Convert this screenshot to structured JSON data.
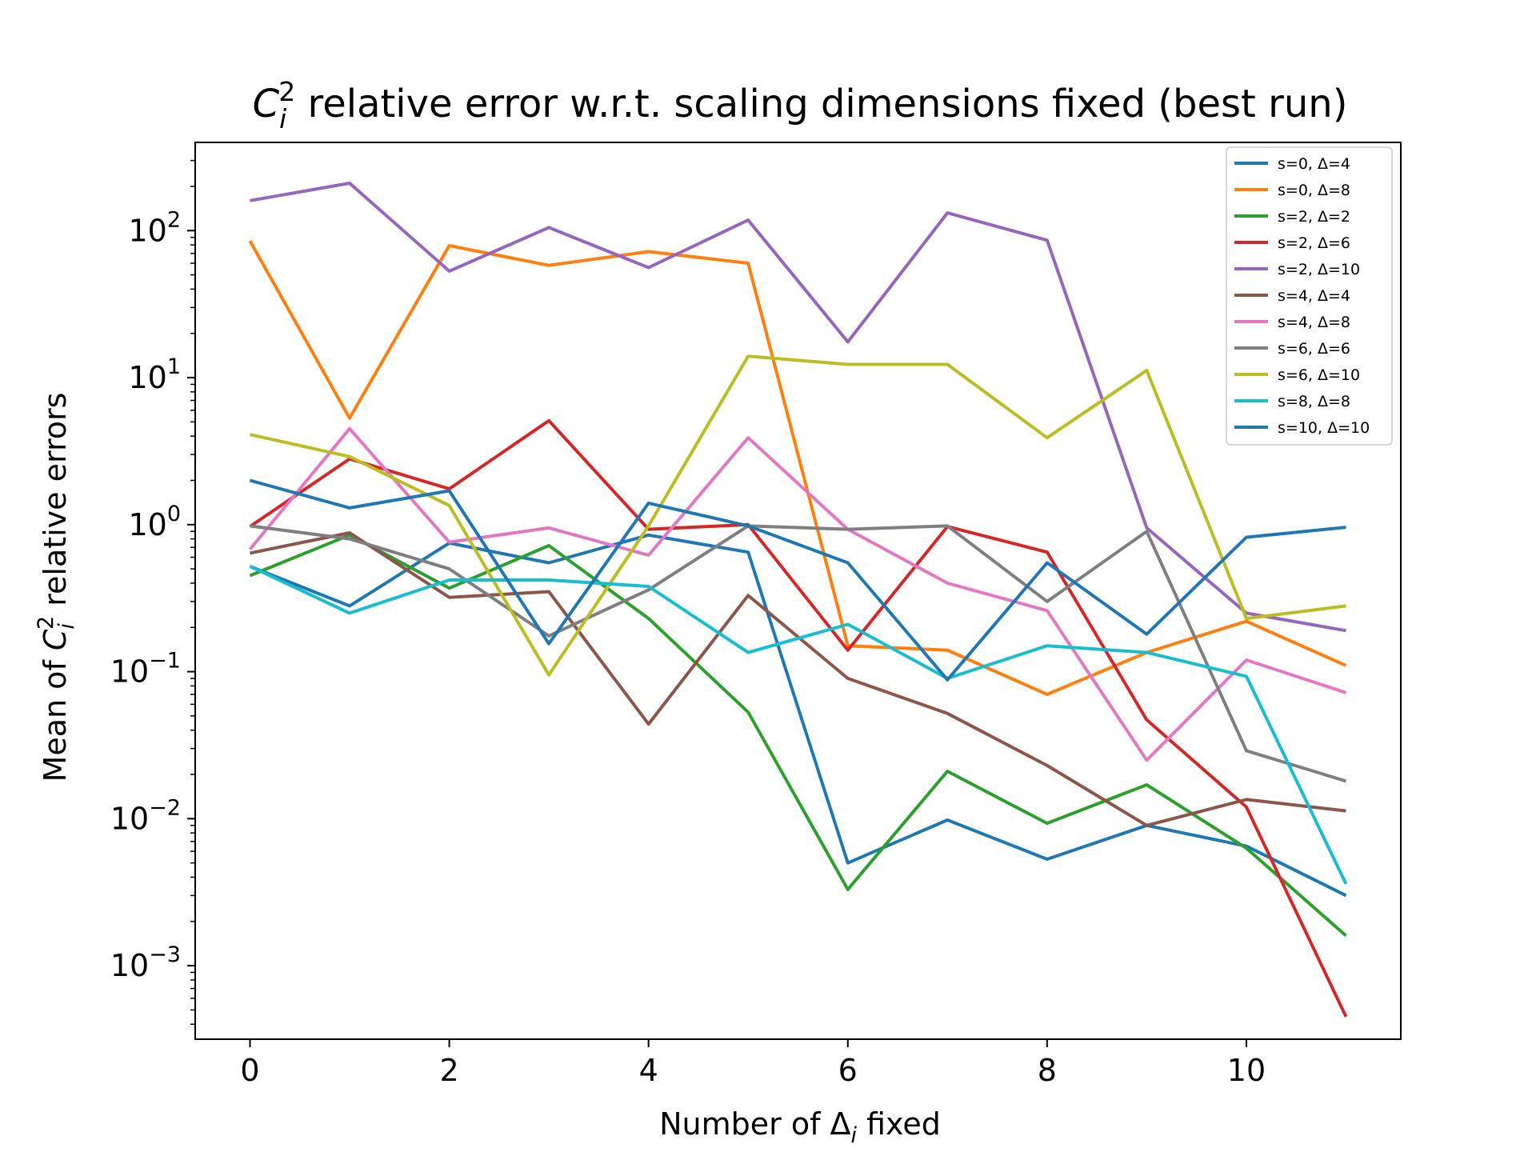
{
  "chart_data": {
    "type": "line",
    "title": {
      "base": "C",
      "sub": "i",
      "sup": "2",
      "rest": " relative error w.r.t. scaling dimensions fixed (best run)"
    },
    "xlabel": {
      "base": "Number of Δ",
      "sub": "i",
      "rest": " fixed"
    },
    "ylabel": {
      "before": "Mean of ",
      "base": "C",
      "sub": "i",
      "sup": "2",
      "rest": " relative errors"
    },
    "y_scale": "log",
    "xlim": [
      -0.55,
      11.55
    ],
    "ylim_log10": [
      -3.5,
      2.6
    ],
    "x_ticks": [
      0,
      2,
      4,
      6,
      8,
      10
    ],
    "y_ticks": [
      {
        "base": "10",
        "exp": "2",
        "value_log10": 2
      },
      {
        "base": "10",
        "exp": "1",
        "value_log10": 1
      },
      {
        "base": "10",
        "exp": "0",
        "value_log10": 0
      },
      {
        "base": "10",
        "exp": "−1",
        "value_log10": -1
      },
      {
        "base": "10",
        "exp": "−2",
        "value_log10": -2
      },
      {
        "base": "10",
        "exp": "−3",
        "value_log10": -3
      }
    ],
    "grid": false,
    "legend_position": "top-right",
    "x": [
      0,
      1,
      2,
      3,
      4,
      5,
      6,
      7,
      8,
      9,
      10,
      11
    ],
    "series": [
      {
        "name": "s=0, Δ=4",
        "color": "#1f77b4",
        "values": [
          0.52,
          0.28,
          0.75,
          0.55,
          0.85,
          0.65,
          0.005,
          0.0098,
          0.0053,
          0.009,
          0.0065,
          0.003
        ]
      },
      {
        "name": "s=0, Δ=8",
        "color": "#ff7f0e",
        "values": [
          85,
          5.3,
          79,
          58,
          72,
          60,
          0.15,
          0.14,
          0.07,
          0.135,
          0.22,
          0.11
        ]
      },
      {
        "name": "s=2, Δ=2",
        "color": "#2ca02c",
        "values": [
          0.45,
          0.85,
          0.37,
          0.72,
          0.23,
          0.053,
          0.0033,
          0.021,
          0.0093,
          0.017,
          0.0063,
          0.0016
        ]
      },
      {
        "name": "s=2, Δ=6",
        "color": "#d62728",
        "values": [
          0.97,
          2.8,
          1.75,
          5.1,
          0.93,
          1.0,
          0.14,
          0.97,
          0.65,
          0.047,
          0.012,
          0.00045
        ]
      },
      {
        "name": "s=2, Δ=10",
        "color": "#9467bd",
        "values": [
          160,
          210,
          53,
          105,
          56,
          118,
          17.5,
          132,
          86,
          0.95,
          0.25,
          0.19
        ]
      },
      {
        "name": "s=4, Δ=4",
        "color": "#8c564b",
        "values": [
          0.64,
          0.88,
          0.32,
          0.35,
          0.044,
          0.33,
          0.09,
          0.052,
          0.023,
          0.009,
          0.0135,
          0.0113
        ]
      },
      {
        "name": "s=4, Δ=8",
        "color": "#e377c2",
        "values": [
          0.68,
          4.5,
          0.76,
          0.95,
          0.62,
          3.9,
          0.93,
          0.4,
          0.26,
          0.025,
          0.12,
          0.072
        ]
      },
      {
        "name": "s=6, Δ=6",
        "color": "#7f7f7f",
        "values": [
          0.98,
          0.8,
          0.5,
          0.175,
          0.36,
          0.98,
          0.93,
          0.98,
          0.3,
          0.9,
          0.029,
          0.018
        ]
      },
      {
        "name": "s=6, Δ=10",
        "color": "#bcbd22",
        "values": [
          4.1,
          2.9,
          1.35,
          0.095,
          0.98,
          14,
          12.3,
          12.3,
          3.9,
          11.2,
          0.23,
          0.28
        ]
      },
      {
        "name": "s=8, Δ=8",
        "color": "#17becf",
        "values": [
          0.52,
          0.25,
          0.42,
          0.42,
          0.38,
          0.135,
          0.21,
          0.09,
          0.15,
          0.135,
          0.093,
          0.0036
        ]
      },
      {
        "name": "s=10, Δ=10",
        "color": "#1f77b4",
        "values": [
          2.0,
          1.3,
          1.7,
          0.155,
          1.4,
          0.98,
          0.55,
          0.088,
          0.55,
          0.18,
          0.82,
          0.96
        ]
      }
    ]
  }
}
